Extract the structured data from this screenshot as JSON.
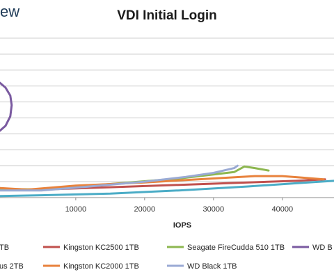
{
  "header": {
    "logo_text": "ew"
  },
  "chart_data": {
    "type": "line",
    "title": "VDI Initial Login",
    "xlabel": "IOPS",
    "ylabel": "",
    "xlim": [
      -1000,
      47500
    ],
    "ylim": [
      0,
      11
    ],
    "xticks": [
      10000,
      20000,
      30000,
      40000
    ],
    "xtick_labels": [
      "10000",
      "20000",
      "30000",
      "40000"
    ],
    "gridlines_y": [
      1,
      2,
      3,
      4,
      5,
      6,
      7,
      8,
      9,
      10
    ],
    "legend_position": "bottom",
    "series": [
      {
        "name": "",
        "legend_text": "TB",
        "color": "#4472c4",
        "points": []
      },
      {
        "name": "Kingston KC2500 1TB",
        "legend_text": "Kingston KC2500 1TB",
        "color": "#c0504d",
        "points": [
          [
            -1000,
            0.5
          ],
          [
            5000,
            0.5
          ],
          [
            15000,
            0.65
          ],
          [
            25000,
            0.8
          ],
          [
            35000,
            0.95
          ],
          [
            42000,
            1.05
          ],
          [
            46200,
            1.15
          ]
        ]
      },
      {
        "name": "Seagate FireCudda 510 1TB",
        "legend_text": "Seagate FireCudda 510 1TB",
        "color": "#8db750",
        "points": [
          [
            -1000,
            0.55
          ],
          [
            5000,
            0.5
          ],
          [
            15000,
            0.85
          ],
          [
            25000,
            1.2
          ],
          [
            30000,
            1.45
          ],
          [
            33000,
            1.6
          ],
          [
            34500,
            1.95
          ],
          [
            36000,
            1.85
          ],
          [
            38000,
            1.7
          ]
        ]
      },
      {
        "name": "",
        "legend_text": "WD B",
        "color": "#7a5aa0",
        "points": [
          [
            -1000,
            7.2
          ],
          [
            -200,
            6.9
          ],
          [
            500,
            6.4
          ],
          [
            700,
            5.8
          ],
          [
            500,
            5.1
          ],
          [
            -200,
            4.5
          ],
          [
            -1000,
            4.2
          ]
        ]
      },
      {
        "name": "",
        "legend_text": "us 2TB",
        "color": "#4bacc6",
        "points": [
          [
            -1000,
            0.1
          ],
          [
            5000,
            0.15
          ],
          [
            15000,
            0.25
          ],
          [
            25000,
            0.45
          ],
          [
            35000,
            0.7
          ],
          [
            42000,
            0.9
          ],
          [
            47500,
            1.05
          ]
        ]
      },
      {
        "name": "Kingston KC2000 1TB",
        "legend_text": "Kingston KC2000 1TB",
        "color": "#e8823c",
        "points": [
          [
            -1000,
            0.6
          ],
          [
            3000,
            0.5
          ],
          [
            10000,
            0.75
          ],
          [
            20000,
            0.95
          ],
          [
            30000,
            1.2
          ],
          [
            36000,
            1.35
          ],
          [
            40000,
            1.35
          ],
          [
            43000,
            1.25
          ],
          [
            46000,
            1.15
          ]
        ]
      },
      {
        "name": "WD Black 1TB",
        "legend_text": "WD Black 1TB",
        "color": "#9aaad4",
        "points": [
          [
            -1000,
            0.45
          ],
          [
            5000,
            0.45
          ],
          [
            12000,
            0.7
          ],
          [
            20000,
            1.0
          ],
          [
            26000,
            1.3
          ],
          [
            30000,
            1.55
          ],
          [
            33000,
            1.85
          ],
          [
            33500,
            2.0
          ]
        ]
      }
    ]
  }
}
